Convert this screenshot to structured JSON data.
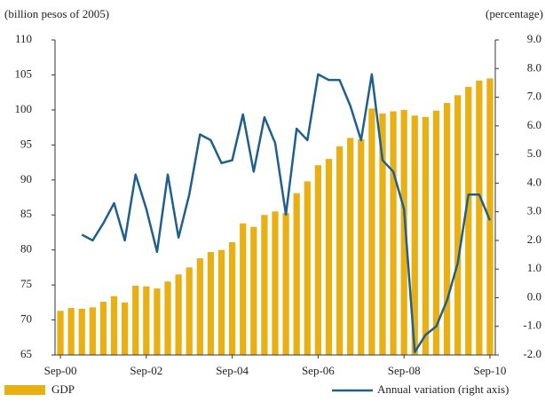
{
  "chart_data": {
    "type": "bar_line",
    "y_axis_label": "(billion pesos of 2005)",
    "y2_axis_label": "(percentage)",
    "categories": [
      "Sep-00",
      null,
      null,
      null,
      null,
      null,
      null,
      null,
      "Sep-02",
      null,
      null,
      null,
      null,
      null,
      null,
      null,
      "Sep-04",
      null,
      null,
      null,
      null,
      null,
      null,
      null,
      "Sep-06",
      null,
      null,
      null,
      null,
      null,
      null,
      null,
      "Sep-08",
      null,
      null,
      null,
      null,
      null,
      null,
      null,
      "Sep-10"
    ],
    "series": [
      {
        "name": "GDP",
        "color": "#e8b012",
        "kind": "bar",
        "values": [
          71.3,
          71.7,
          71.6,
          71.8,
          72.6,
          73.4,
          72.5,
          74.9,
          74.8,
          74.5,
          75.5,
          76.5,
          77.5,
          78.8,
          79.7,
          80.0,
          81.1,
          83.8,
          83.3,
          85.0,
          85.5,
          85.3,
          88.1,
          89.8,
          92.1,
          93.0,
          94.8,
          96.0,
          95.8,
          100.2,
          99.5,
          99.8,
          100.0,
          99.2,
          99.0,
          99.9,
          101.0,
          102.1,
          103.3,
          104.2,
          104.5
        ]
      },
      {
        "name": "Annual variation (right axis)",
        "color": "#1f5f8b",
        "kind": "line",
        "axis": "y2",
        "values": [
          null,
          null,
          2.2,
          2.0,
          2.6,
          3.3,
          2.0,
          4.3,
          3.1,
          1.6,
          4.3,
          2.1,
          3.6,
          5.7,
          5.5,
          4.7,
          4.8,
          6.4,
          4.4,
          6.3,
          5.4,
          2.9,
          5.9,
          5.5,
          7.8,
          7.6,
          7.6,
          6.7,
          5.5,
          7.8,
          4.8,
          4.4,
          3.1,
          -1.9,
          -1.3,
          -1.0,
          -0.1,
          1.2,
          3.6,
          3.6,
          2.7
        ]
      }
    ],
    "ylim": [
      65,
      110
    ],
    "yticks": [
      65,
      70,
      75,
      80,
      85,
      90,
      95,
      100,
      105,
      110
    ],
    "y2lim": [
      -2,
      9
    ],
    "y2ticks": [
      {
        "value": -2,
        "label": "-2.0"
      },
      {
        "value": -1,
        "label": "-1.0"
      },
      {
        "value": 0,
        "label": "0.0"
      },
      {
        "value": 1,
        "label": "1.0"
      },
      {
        "value": 2,
        "label": "2.0"
      },
      {
        "value": 3,
        "label": "3.0"
      },
      {
        "value": 4,
        "label": "4.0"
      },
      {
        "value": 5,
        "label": "5.0"
      },
      {
        "value": 6,
        "label": "6.0"
      },
      {
        "value": 7,
        "label": "7.0"
      },
      {
        "value": 8,
        "label": "8.0"
      },
      {
        "value": 9,
        "label": "9.0"
      }
    ],
    "legend": "bottom"
  }
}
